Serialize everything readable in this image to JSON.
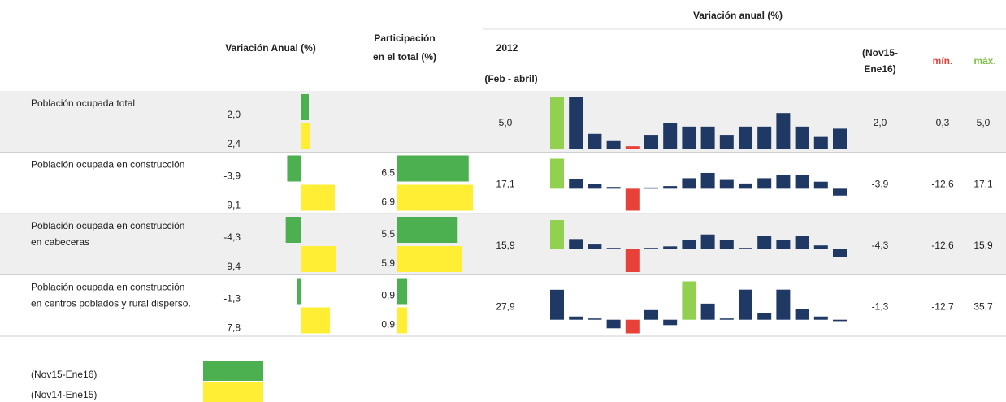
{
  "header": {
    "var_anual": "Variación Anual (%)",
    "participacion": [
      "Participación",
      "en el total (%)"
    ],
    "year": "2012",
    "year_sub": "(Feb - abril)",
    "spark_title": "Variación anual (%)",
    "current": [
      "(Nov15-",
      "Ene16)"
    ],
    "min": "mín.",
    "max": "máx."
  },
  "colors": {
    "current": "#4caf50",
    "prior": "#ffee33",
    "spark_max": "#92d050",
    "spark_min": "#e8413a",
    "spark_other": "#1f3864",
    "min_text": "#e8413a",
    "max_text": "#7cc242"
  },
  "rows": [
    {
      "label": [
        "Población ocupada total"
      ],
      "var": [
        2.0,
        2.4
      ],
      "var_labels": [
        "2,0",
        "2,4"
      ],
      "year_value": "5,0",
      "spark": [
        5.0,
        5.0,
        1.5,
        0.8,
        0.3,
        1.4,
        2.5,
        2.2,
        2.2,
        1.4,
        2.2,
        2.2,
        3.5,
        2.2,
        1.2,
        2.0
      ],
      "current": "2,0",
      "min": "0,3",
      "max": "5,0"
    },
    {
      "label": [
        "Población ocupada en construcción"
      ],
      "var": [
        -3.9,
        9.1
      ],
      "var_labels": [
        "-3,9",
        "9,1"
      ],
      "part": [
        6.5,
        6.9
      ],
      "part_labels": [
        "6,5",
        "6,9"
      ],
      "year_value": "17,1",
      "spark": [
        17.1,
        5.5,
        2.7,
        1.0,
        -12.6,
        0.3,
        1.5,
        6,
        9,
        5,
        3,
        6,
        8,
        8,
        4,
        -3.9
      ],
      "current": "-3,9",
      "min": "-12,6",
      "max": "17,1"
    },
    {
      "label": [
        "Población ocupada en construcción",
        "en cabeceras"
      ],
      "var": [
        -4.3,
        9.4
      ],
      "var_labels": [
        "-4,3",
        "9,4"
      ],
      "part": [
        5.5,
        5.9
      ],
      "part_labels": [
        "5,5",
        "5,9"
      ],
      "year_value": "15,9",
      "spark": [
        15.9,
        5.5,
        2.5,
        0.5,
        -12.6,
        0.5,
        1.5,
        5,
        8,
        5,
        0.5,
        7,
        5,
        7,
        2,
        -4.3
      ],
      "current": "-4,3",
      "min": "-12,6",
      "max": "15,9"
    },
    {
      "label": [
        "Población ocupada en construcción",
        "en centros poblados y rural disperso."
      ],
      "var": [
        -1.3,
        7.8
      ],
      "var_labels": [
        "-1,3",
        "7,8"
      ],
      "part": [
        0.9,
        0.9
      ],
      "part_labels": [
        "0,9",
        "0,9"
      ],
      "year_value": "27,9",
      "spark": [
        27.9,
        3,
        0.5,
        -8,
        -12.7,
        9,
        -5,
        35.7,
        15,
        0.5,
        28,
        6,
        28,
        10,
        3,
        -1.3
      ],
      "current": "-1,3",
      "min": "-12,7",
      "max": "35,7"
    }
  ],
  "legend": [
    "(Nov15-Ene16)",
    "(Nov14-Ene15)"
  ]
}
